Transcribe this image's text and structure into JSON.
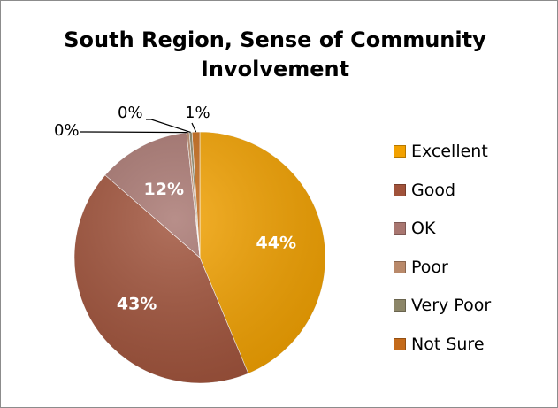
{
  "chart_data": {
    "type": "pie",
    "title": "South Region, Sense of Community Involvement",
    "categories": [
      "Excellent",
      "Good",
      "OK",
      "Poor",
      "Very Poor",
      "Not Sure"
    ],
    "values": [
      44,
      43,
      12,
      0,
      0,
      1
    ],
    "data_labels": [
      "44%",
      "43%",
      "12%",
      "0%",
      "0%",
      "1%"
    ],
    "colors": [
      "#F2A100",
      "#A0523A",
      "#A87670",
      "#B9896A",
      "#8C8668",
      "#C46A1A"
    ],
    "legend_position": "right"
  }
}
